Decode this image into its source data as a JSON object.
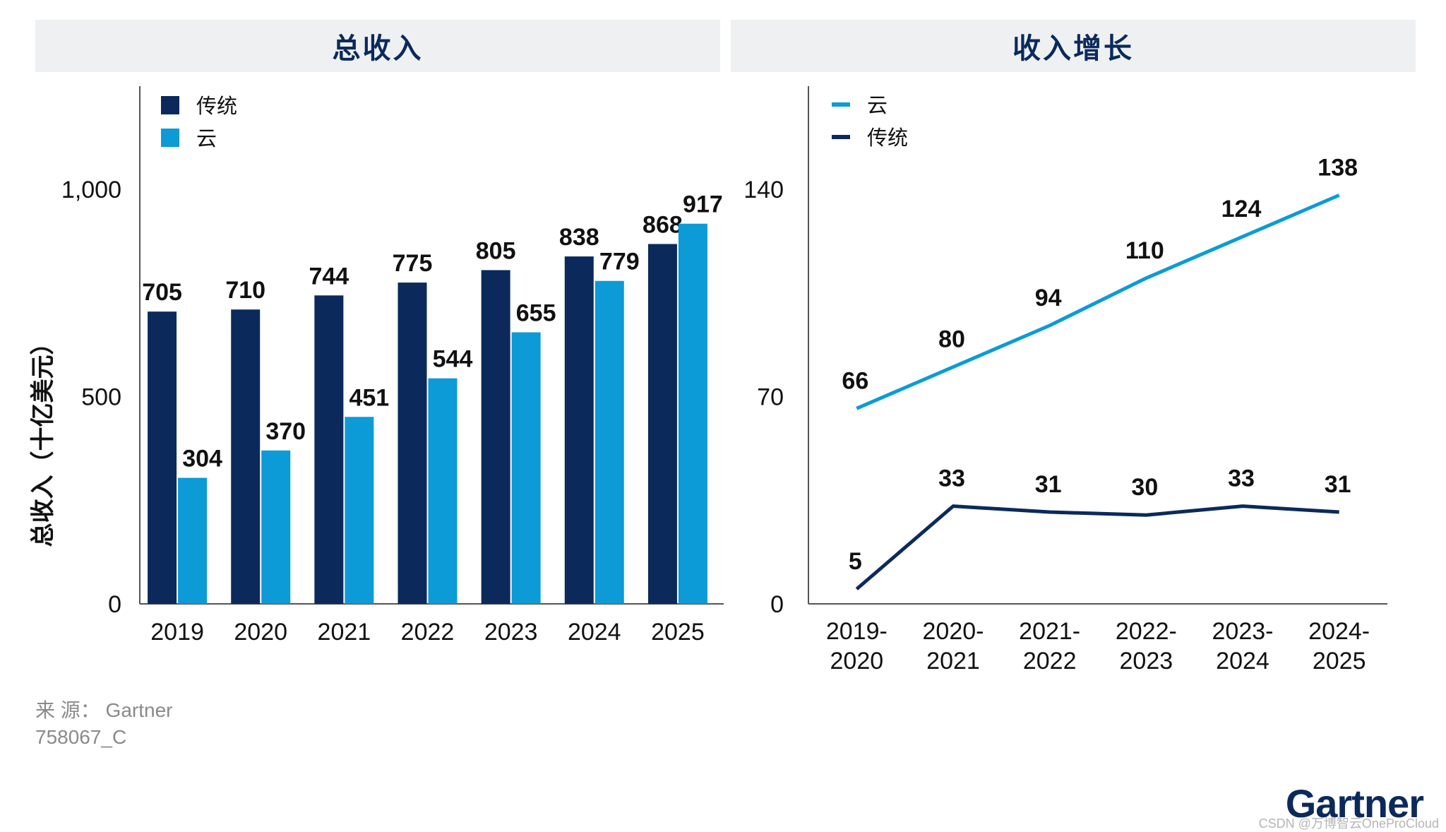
{
  "panels": {
    "left_title": "总收入",
    "right_title": "收入增长"
  },
  "footer": {
    "source": "来 源： Gartner",
    "code": "758067_C",
    "logo": "Gartner",
    "watermark": "CSDN @万博智云OneProCloud"
  },
  "colors": {
    "traditional": "#0b2a5b",
    "cloud": "#0c9bd6",
    "header_bg": "#eef0f2",
    "axis": "#555555"
  },
  "chart_data": [
    {
      "type": "bar",
      "title": "总收入",
      "ylabel": "总收入（十亿美元）",
      "xlabel": "",
      "categories": [
        "2019",
        "2020",
        "2021",
        "2022",
        "2023",
        "2024",
        "2025"
      ],
      "series": [
        {
          "name": "传统",
          "values": [
            705,
            710,
            744,
            775,
            805,
            838,
            868
          ]
        },
        {
          "name": "云",
          "values": [
            304,
            370,
            451,
            544,
            655,
            779,
            917
          ]
        }
      ],
      "ylim": [
        0,
        1000
      ],
      "yticks": [
        0,
        500,
        1000
      ],
      "ytick_labels": [
        "0",
        "500",
        "1,000"
      ],
      "legend": "top-left",
      "grid": false
    },
    {
      "type": "line",
      "title": "收入增长",
      "xlabel": "",
      "ylabel": "",
      "categories": [
        "2019-\n2020",
        "2020-\n2021",
        "2021-\n2022",
        "2022-\n2023",
        "2023-\n2024",
        "2024-\n2025"
      ],
      "series": [
        {
          "name": "云",
          "values": [
            66,
            80,
            94,
            110,
            124,
            138
          ]
        },
        {
          "name": "传统",
          "values": [
            5,
            33,
            31,
            30,
            33,
            31
          ]
        }
      ],
      "ylim": [
        0,
        140
      ],
      "yticks": [
        0,
        70,
        140
      ],
      "ytick_labels": [
        "0",
        "70",
        "140"
      ],
      "legend": "top-left",
      "grid": false
    }
  ]
}
